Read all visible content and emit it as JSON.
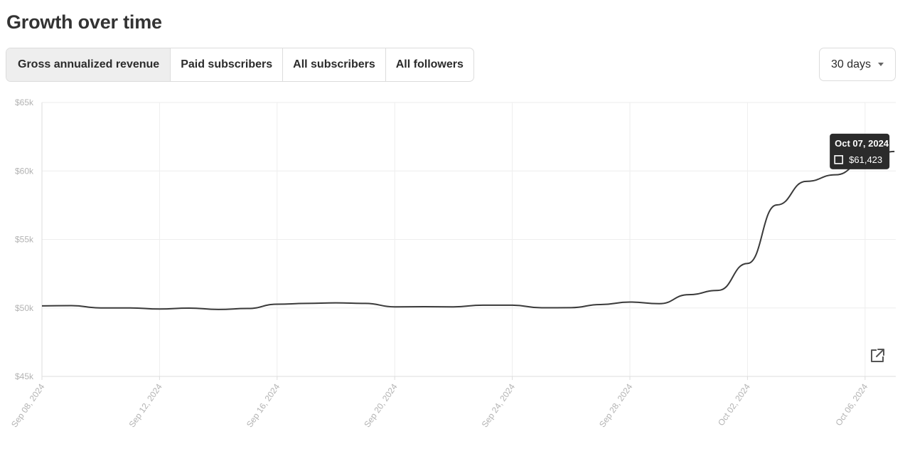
{
  "title": "Growth over time",
  "tabs": [
    {
      "label": "Gross annualized revenue",
      "active": true
    },
    {
      "label": "Paid subscribers",
      "active": false
    },
    {
      "label": "All subscribers",
      "active": false
    },
    {
      "label": "All followers",
      "active": false
    }
  ],
  "range": {
    "label": "30 days"
  },
  "tooltip": {
    "date": "Oct 07, 2024",
    "value": "$61,423"
  },
  "colors": {
    "line": "#3a3a3a",
    "grid": "#eeeeee",
    "axis": "#dddddd",
    "tooltip_bg": "#2b2b2b"
  },
  "icons": {
    "expand": "external-link-icon"
  },
  "chart_data": {
    "type": "line",
    "y_ticks": [
      "$45k",
      "$50k",
      "$55k",
      "$60k",
      "$65k"
    ],
    "ylim": [
      45000,
      65000
    ],
    "x_ticks": [
      "Sep 08, 2024",
      "Sep 12, 2024",
      "Sep 16, 2024",
      "Sep 20, 2024",
      "Sep 24, 2024",
      "Sep 28, 2024",
      "Oct 02, 2024",
      "Oct 06, 2024"
    ],
    "x": [
      "Sep 08, 2024",
      "Sep 09, 2024",
      "Sep 10, 2024",
      "Sep 11, 2024",
      "Sep 12, 2024",
      "Sep 13, 2024",
      "Sep 14, 2024",
      "Sep 15, 2024",
      "Sep 16, 2024",
      "Sep 17, 2024",
      "Sep 18, 2024",
      "Sep 19, 2024",
      "Sep 20, 2024",
      "Sep 21, 2024",
      "Sep 22, 2024",
      "Sep 23, 2024",
      "Sep 24, 2024",
      "Sep 25, 2024",
      "Sep 26, 2024",
      "Sep 27, 2024",
      "Sep 28, 2024",
      "Sep 29, 2024",
      "Sep 30, 2024",
      "Oct 01, 2024",
      "Oct 02, 2024",
      "Oct 03, 2024",
      "Oct 04, 2024",
      "Oct 05, 2024",
      "Oct 06, 2024",
      "Oct 07, 2024"
    ],
    "values": [
      50150,
      50170,
      50000,
      50000,
      49920,
      49990,
      49890,
      49960,
      50270,
      50330,
      50370,
      50330,
      50080,
      50090,
      50080,
      50200,
      50200,
      50010,
      50020,
      50250,
      50430,
      50310,
      50970,
      51280,
      53250,
      57520,
      59240,
      59720,
      60730,
      61423
    ],
    "grid": true
  }
}
